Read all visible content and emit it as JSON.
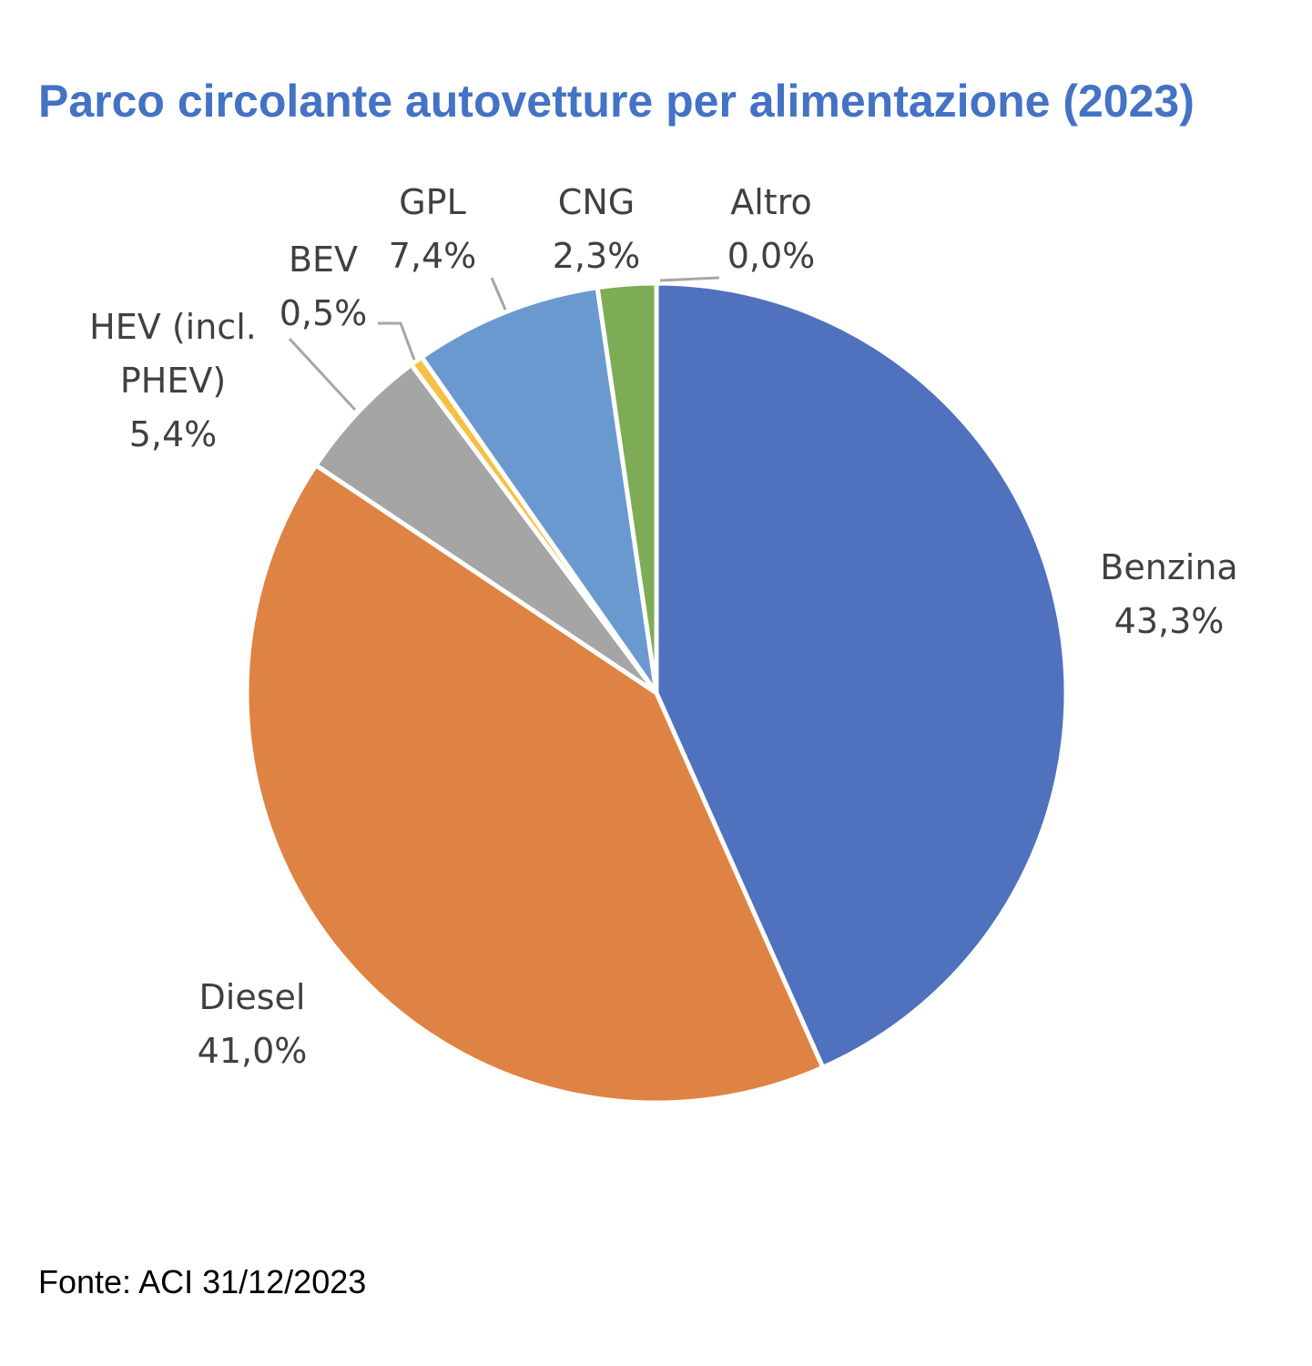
{
  "title": "Parco circolante autovetture per alimentazione (2023)",
  "source": "Fonte: ACI 31/12/2023",
  "chart_data": {
    "type": "pie",
    "title": "Parco circolante autovetture per alimentazione (2023)",
    "slices": [
      {
        "name": "Benzina",
        "label_lines": [
          "Benzina"
        ],
        "value": 43.3,
        "value_label": "43,3%",
        "color": "#4F71BE"
      },
      {
        "name": "Diesel",
        "label_lines": [
          "Diesel"
        ],
        "value": 41.0,
        "value_label": "41,0%",
        "color": "#DE8344"
      },
      {
        "name": "HEV (incl. PHEV)",
        "label_lines": [
          "HEV (incl.",
          "PHEV)"
        ],
        "value": 5.4,
        "value_label": "5,4%",
        "color": "#A5A5A5"
      },
      {
        "name": "BEV",
        "label_lines": [
          "BEV"
        ],
        "value": 0.5,
        "value_label": "0,5%",
        "color": "#F6C143"
      },
      {
        "name": "GPL",
        "label_lines": [
          "GPL"
        ],
        "value": 7.4,
        "value_label": "7,4%",
        "color": "#6A99D0"
      },
      {
        "name": "CNG",
        "label_lines": [
          "CNG"
        ],
        "value": 2.3,
        "value_label": "2,3%",
        "color": "#7EAB55"
      },
      {
        "name": "Altro",
        "label_lines": [
          "Altro"
        ],
        "value": 0.0,
        "value_label": "0,0%",
        "color": "#264478"
      }
    ],
    "start_angle_deg": 0,
    "direction": "clockwise",
    "legend": "none",
    "data_labels": "outside with leader lines"
  }
}
